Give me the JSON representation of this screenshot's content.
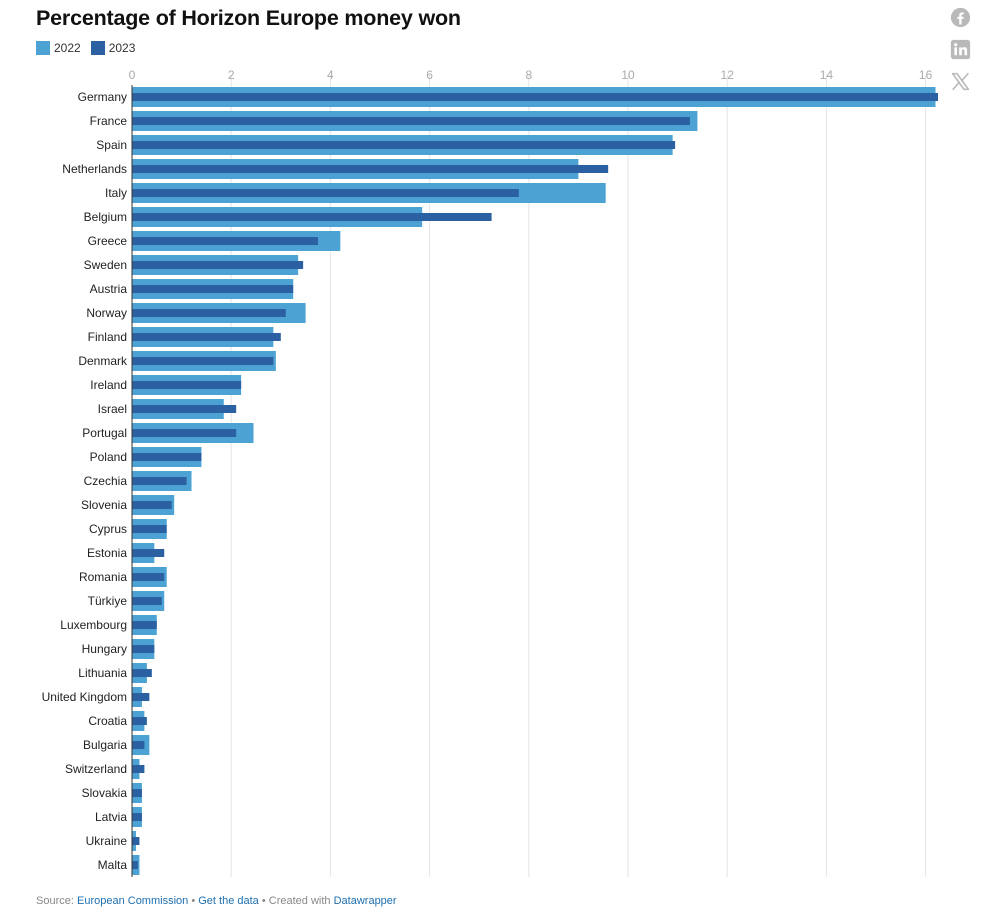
{
  "header": {
    "title": "Percentage of Horizon Europe money won"
  },
  "colors": {
    "series_2022": "#4ca3d3",
    "series_2023": "#2b61a3",
    "grid": "#e3e3e3",
    "axis": "#333333",
    "tick": "#aaaaaa",
    "share_icon": "#b9b9b9",
    "link": "#1d6fb0"
  },
  "icons": {
    "share_facebook": "facebook-icon",
    "share_linkedin": "linkedin-icon",
    "share_x": "x-icon"
  },
  "chart_data": {
    "type": "bar",
    "orientation": "horizontal",
    "title": "Percentage of Horizon Europe money won",
    "xlabel": "",
    "ylabel": "",
    "xlim": [
      0,
      16.4
    ],
    "xticks": [
      0,
      2,
      4,
      6,
      8,
      10,
      12,
      14,
      16
    ],
    "grid": true,
    "legend_position": "top-left",
    "categories": [
      "Germany",
      "France",
      "Spain",
      "Netherlands",
      "Italy",
      "Belgium",
      "Greece",
      "Sweden",
      "Austria",
      "Norway",
      "Finland",
      "Denmark",
      "Ireland",
      "Israel",
      "Portugal",
      "Poland",
      "Czechia",
      "Slovenia",
      "Cyprus",
      "Estonia",
      "Romania",
      "Türkiye",
      "Luxembourg",
      "Hungary",
      "Lithuania",
      "United Kingdom",
      "Croatia",
      "Bulgaria",
      "Switzerland",
      "Slovakia",
      "Latvia",
      "Ukraine",
      "Malta"
    ],
    "series": [
      {
        "name": "2022",
        "values": [
          16.2,
          11.4,
          10.9,
          9.0,
          9.55,
          5.85,
          4.2,
          3.35,
          3.25,
          3.5,
          2.85,
          2.9,
          2.2,
          1.85,
          2.45,
          1.4,
          1.2,
          0.85,
          0.7,
          0.45,
          0.7,
          0.65,
          0.5,
          0.45,
          0.3,
          0.2,
          0.25,
          0.35,
          0.15,
          0.2,
          0.2,
          0.08,
          0.15
        ]
      },
      {
        "name": "2023",
        "values": [
          16.25,
          11.25,
          10.95,
          9.6,
          7.8,
          7.25,
          3.75,
          3.45,
          3.25,
          3.1,
          3.0,
          2.85,
          2.2,
          2.1,
          2.1,
          1.4,
          1.1,
          0.8,
          0.7,
          0.65,
          0.65,
          0.6,
          0.5,
          0.45,
          0.4,
          0.35,
          0.3,
          0.25,
          0.25,
          0.2,
          0.2,
          0.15,
          0.12
        ]
      }
    ]
  },
  "footer": {
    "source_prefix": "Source:",
    "source_link": "European Commission",
    "separator1": "•",
    "data_link": "Get the data",
    "separator2": "•",
    "created_with": "Created with",
    "tool_link": "Datawrapper"
  }
}
